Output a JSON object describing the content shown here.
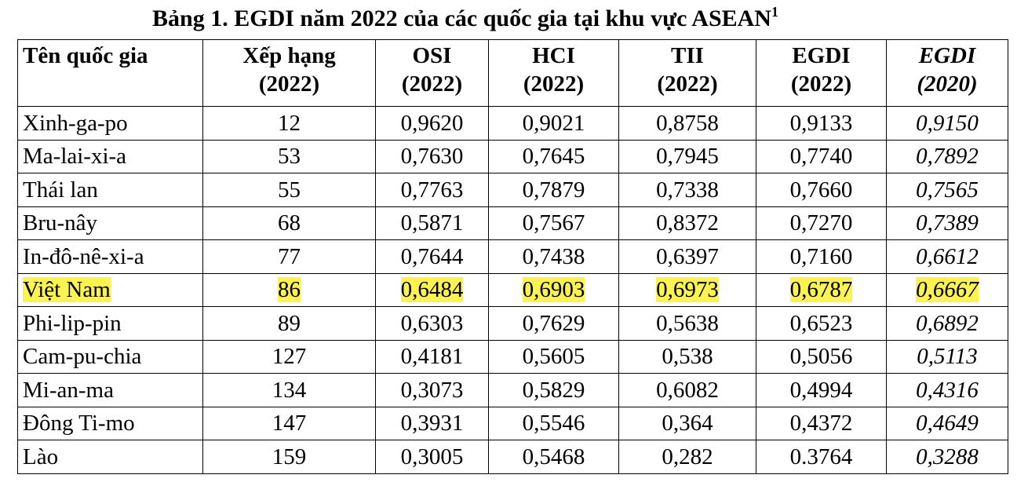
{
  "title": {
    "text": "Bảng 1. EGDI năm 2022 của các quốc gia tại khu vực ASEAN",
    "footnote_mark": "1"
  },
  "table": {
    "header": [
      [
        "Tên quốc gia"
      ],
      [
        "Xếp hạng",
        "(2022)"
      ],
      [
        "OSI",
        "(2022)"
      ],
      [
        "HCI",
        "(2022)"
      ],
      [
        "TII",
        "(2022)"
      ],
      [
        "EGDI",
        "(2022)"
      ],
      [
        "EGDI",
        "(2020)"
      ]
    ],
    "rows": [
      [
        "Xinh-ga-po",
        "12",
        "0,9620",
        "0,9021",
        "0,8758",
        "0,9133",
        "0,9150"
      ],
      [
        "Ma-lai-xi-a",
        "53",
        "0,7630",
        "0,7645",
        "0,7945",
        "0,7740",
        "0,7892"
      ],
      [
        "Thái lan",
        "55",
        "0,7763",
        "0,7879",
        "0,7338",
        "0,7660",
        "0,7565"
      ],
      [
        "Bru-nây",
        "68",
        "0,5871",
        "0,7567",
        "0,8372",
        "0,7270",
        "0,7389"
      ],
      [
        "In-đô-nê-xi-a",
        "77",
        "0,7644",
        "0,7438",
        "0,6397",
        "0,7160",
        "0,6612"
      ],
      [
        "Việt Nam",
        "86",
        "0,6484",
        "0,6903",
        "0,6973",
        "0,6787",
        "0,6667"
      ],
      [
        "Phi-lip-pin",
        "89",
        "0,6303",
        "0,7629",
        "0,5638",
        "0,6523",
        "0,6892"
      ],
      [
        "Cam-pu-chia",
        "127",
        "0,4181",
        "0,5605",
        "0,538",
        "0,5056",
        "0,5113"
      ],
      [
        "Mi-an-ma",
        "134",
        "0,3073",
        "0,5829",
        "0,6082",
        "0,4994",
        "0,4316"
      ],
      [
        "Đông Ti-mo",
        "147",
        "0,3931",
        "0,5546",
        "0,364",
        "0,4372",
        "0,4649"
      ],
      [
        "Lào",
        "159",
        "0,3005",
        "0,5468",
        "0,282",
        "0.3764",
        "0,3288"
      ]
    ],
    "highlighted_row": 5,
    "highlight_color": "#fcf350"
  }
}
